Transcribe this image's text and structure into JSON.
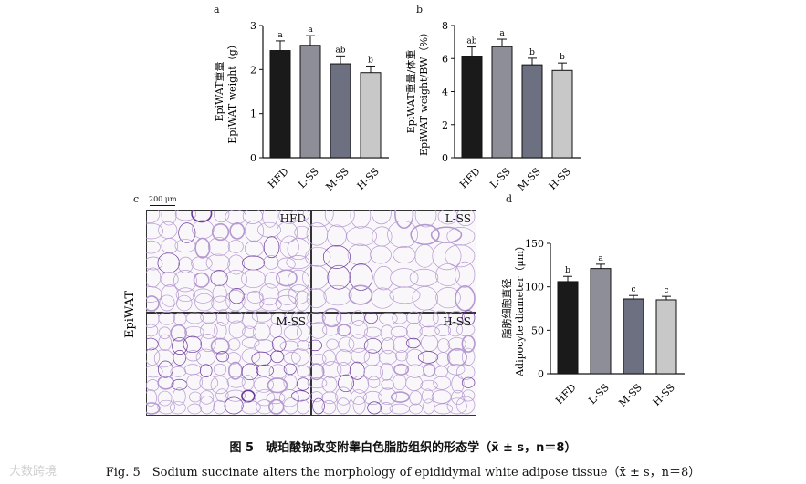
{
  "panel_letters": {
    "a": "a",
    "b": "b",
    "c": "c",
    "d": "d"
  },
  "chart_data": [
    {
      "id": "a",
      "type": "bar",
      "categories": [
        "HFD",
        "L-SS",
        "M-SS",
        "H-SS"
      ],
      "values": [
        2.43,
        2.55,
        2.13,
        1.93
      ],
      "errors": [
        0.22,
        0.22,
        0.18,
        0.15
      ],
      "sig_letters": [
        "a",
        "a",
        "ab",
        "b"
      ],
      "bar_colors": [
        "#1a1a1a",
        "#8e8e99",
        "#6d7080",
        "#c8c8c8"
      ],
      "ylabel_cn": "EpiWAT重量",
      "ylabel_en": "EpiWAT weight（g）",
      "ylim": [
        0,
        3
      ],
      "yticks": [
        0,
        1,
        2,
        3
      ]
    },
    {
      "id": "b",
      "type": "bar",
      "categories": [
        "HFD",
        "L-SS",
        "M-SS",
        "H-SS"
      ],
      "values": [
        6.15,
        6.72,
        5.62,
        5.28
      ],
      "errors": [
        0.55,
        0.45,
        0.4,
        0.45
      ],
      "sig_letters": [
        "ab",
        "a",
        "b",
        "b"
      ],
      "bar_colors": [
        "#1a1a1a",
        "#8e8e99",
        "#6d7080",
        "#c8c8c8"
      ],
      "ylabel_cn": "EpiWAT重量/体重",
      "ylabel_en": "EpiWAT weight/BW（%）",
      "ylim": [
        0,
        8
      ],
      "yticks": [
        0,
        2,
        4,
        6,
        8
      ]
    },
    {
      "id": "d",
      "type": "bar",
      "categories": [
        "HFD",
        "L-SS",
        "M-SS",
        "H-SS"
      ],
      "values": [
        106,
        121,
        86,
        85
      ],
      "errors": [
        6,
        5,
        4,
        4
      ],
      "sig_letters": [
        "b",
        "a",
        "c",
        "c"
      ],
      "bar_colors": [
        "#1a1a1a",
        "#8e8e99",
        "#6d7080",
        "#c8c8c8"
      ],
      "ylabel_cn": "脂肪细胞直径",
      "ylabel_en": "Adipocyte diameter（μm）",
      "ylim": [
        0,
        150
      ],
      "yticks": [
        0,
        50,
        100,
        150
      ]
    }
  ],
  "histology": {
    "row_label": "EpiWAT",
    "scale_bar": "200 μm",
    "panels": [
      "HFD",
      "L-SS",
      "M-SS",
      "H-SS"
    ]
  },
  "caption_cn": "图 5　琥珀酸钠改变附睾白色脂肪组织的形态学（x̄ ± s，n＝8）",
  "caption_en": "Fig. 5　Sodium succinate alters the morphology of epididymal white adipose tissue（x̄ ± s，n＝8）",
  "watermark": "大数跨境"
}
